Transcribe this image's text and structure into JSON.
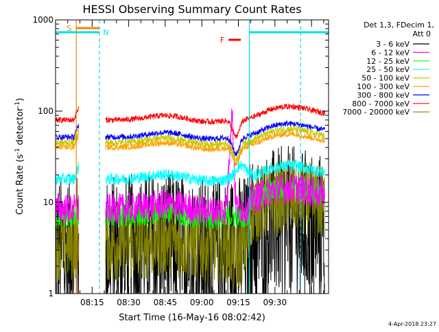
{
  "chart_data": {
    "type": "line",
    "title": "HESSI Observing Summary Count Rates",
    "xlabel": "Start Time (16-May-16 08:02:42)",
    "ylabel_main": "Count Rate (s",
    "ylabel_sup1": "-1",
    "ylabel_mid": " detector",
    "ylabel_sup2": "-1",
    "ylabel_end": ")",
    "yscale": "log",
    "ylim": [
      1,
      1000
    ],
    "xlim_min": [
      0,
      112
    ],
    "x_ticks": [
      {
        "min": 15,
        "label": "08:15"
      },
      {
        "min": 30,
        "label": "08:30"
      },
      {
        "min": 45,
        "label": "08:45"
      },
      {
        "min": 60,
        "label": "09:00"
      },
      {
        "min": 75,
        "label": "09:15"
      },
      {
        "min": 90,
        "label": "09:30"
      }
    ],
    "y_ticks": [
      {
        "value": 1,
        "label": "1"
      },
      {
        "value": 10,
        "label": "10"
      },
      {
        "value": 100,
        "label": "100"
      },
      {
        "value": 1000,
        "label": "1000"
      }
    ],
    "legend": {
      "header": [
        "Det 1,3, FDecim 1,",
        "Att 0"
      ],
      "placement": "right"
    },
    "series": [
      {
        "name": "3 - 6 keV",
        "color": "#000000",
        "level": 3,
        "noise": 0.28
      },
      {
        "name": "6 - 12 keV",
        "color": "#ff00ff",
        "level": 8.5,
        "noise": 0.08
      },
      {
        "name": "12 - 25 keV",
        "color": "#00ff00",
        "level": 7,
        "noise": 0.06
      },
      {
        "name": "25 - 50 keV",
        "color": "#00ffff",
        "level": 18,
        "noise": 0.03
      },
      {
        "name": "50 - 100 keV",
        "color": "#c8c800",
        "level": 45,
        "noise": 0.02
      },
      {
        "name": "100 - 300 keV",
        "color": "#ffa000",
        "level": 40,
        "noise": 0.015
      },
      {
        "name": "300 - 800 keV",
        "color": "#0000ff",
        "level": 52,
        "noise": 0.015
      },
      {
        "name": "800 - 7000 keV",
        "color": "#ff0000",
        "level": 80,
        "noise": 0.015
      },
      {
        "name": "7000 - 20000 keV",
        "color": "#808000",
        "level": 3.5,
        "noise": 0.14
      }
    ],
    "annotations": [
      {
        "label": "S",
        "color": "#ff8000"
      },
      {
        "label": "N",
        "color": "#00e0e0"
      },
      {
        "label": "F",
        "color": "#ff0000"
      }
    ],
    "vlines": [
      {
        "min": 8.5,
        "color": "#ff8000",
        "style": "solid"
      },
      {
        "min": 18.0,
        "color": "#00e0e0",
        "style": "dashed"
      },
      {
        "min": 79.5,
        "color": "#00e0e0",
        "style": "solid"
      },
      {
        "min": 100.5,
        "color": "#00e0e0",
        "style": "dashed"
      }
    ],
    "data_gap_min": [
      9.5,
      20.5
    ]
  },
  "footer": {
    "timestamp": "4-Apr-2018 23:27"
  }
}
